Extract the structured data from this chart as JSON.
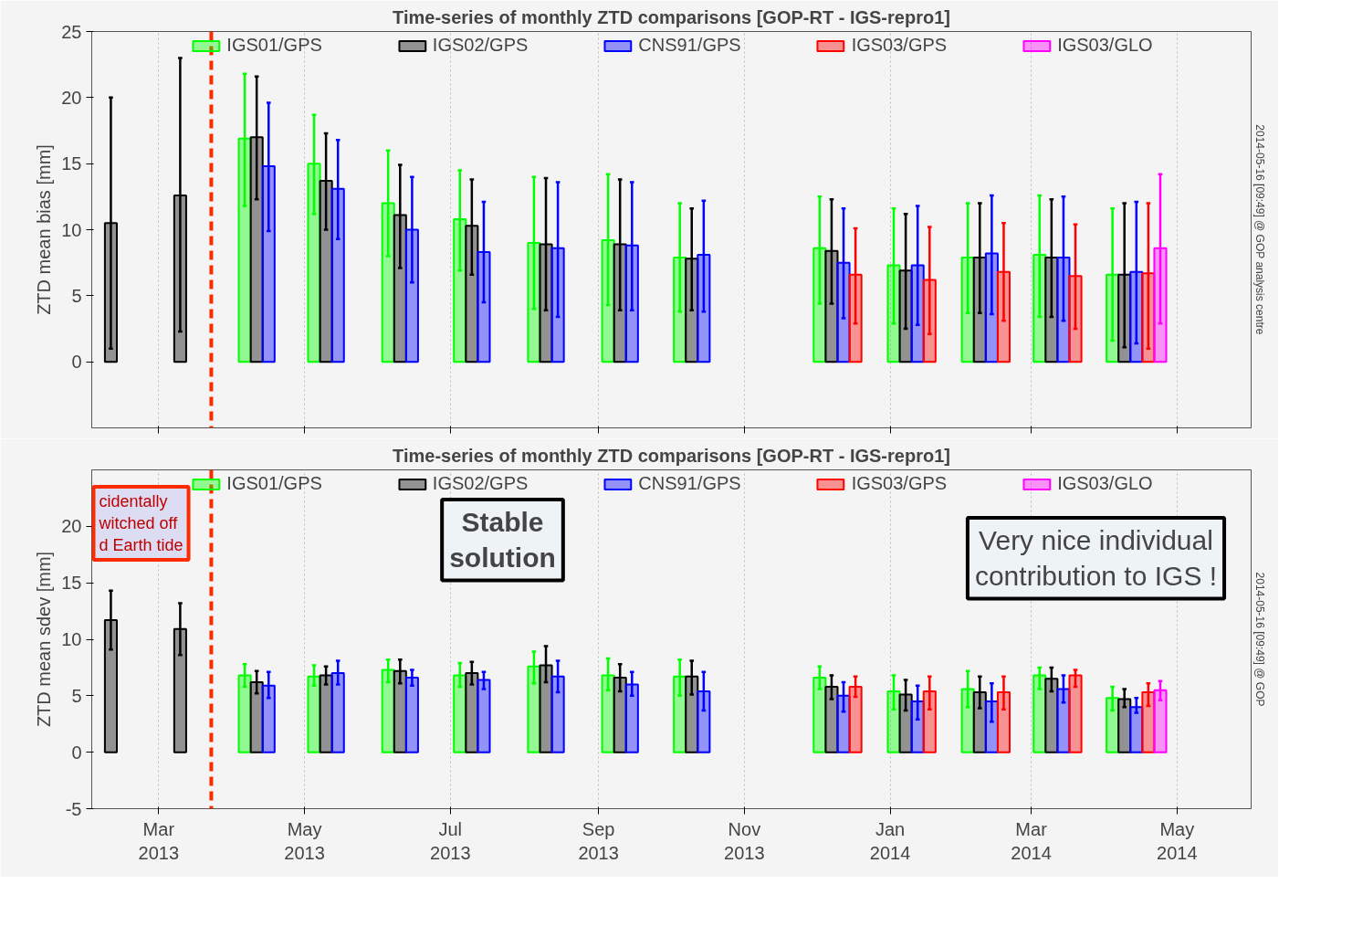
{
  "chart_data": [
    {
      "type": "bar",
      "title": "Time-series of monthly ZTD comparisons [GOP-RT - IGS-repro1]",
      "ylabel": "ZTD mean bias [mm]",
      "x": [
        "2013-02-09",
        "2013-03-10",
        "2013-04-11",
        "2013-05-10",
        "2013-06-10",
        "2013-07-10",
        "2013-08-10",
        "2013-09-10",
        "2013-10-10",
        "2013-12-10",
        "2014-01-10",
        "2014-02-10",
        "2014-03-12",
        "2014-04-14"
      ],
      "xlim": [
        "2013-02-01",
        "2014-06-01"
      ],
      "xticks": [
        {
          "value": "2013-03-01",
          "label": null
        },
        {
          "value": "2013-05-01",
          "label": null
        },
        {
          "value": "2013-07-01",
          "label": null
        },
        {
          "value": "2013-09-01",
          "label": null
        },
        {
          "value": "2013-11-01",
          "label": null
        },
        {
          "value": "2014-01-01",
          "label": null
        },
        {
          "value": "2014-03-01",
          "label": null
        },
        {
          "value": "2014-05-01",
          "label": null
        }
      ],
      "ylim": [
        -5,
        25
      ],
      "yticks": [
        0,
        5,
        10,
        15,
        20,
        25
      ],
      "tick_labels": "y",
      "grid": "x",
      "legend": "top",
      "series": [
        {
          "name": "IGS01/GPS",
          "color": "#00ff00",
          "values": [
            null,
            null,
            16.9,
            15.0,
            12.0,
            10.8,
            9.0,
            9.2,
            7.9,
            8.6,
            7.3,
            7.9,
            8.1,
            6.6
          ],
          "errors": [
            null,
            null,
            [
              11.8,
              21.8
            ],
            [
              11.2,
              18.7
            ],
            [
              8.0,
              16.0
            ],
            [
              6.9,
              14.5
            ],
            [
              4.0,
              14.0
            ],
            [
              4.3,
              14.2
            ],
            [
              3.8,
              12.0
            ],
            [
              4.4,
              12.5
            ],
            [
              2.9,
              11.6
            ],
            [
              3.7,
              12.0
            ],
            [
              3.4,
              12.6
            ],
            [
              1.6,
              11.6
            ]
          ]
        },
        {
          "name": "IGS02/GPS",
          "color": "#000000",
          "values": [
            10.5,
            12.6,
            17.0,
            13.7,
            11.1,
            10.3,
            8.9,
            8.9,
            7.8,
            8.4,
            6.9,
            7.9,
            7.9,
            6.6
          ],
          "errors": [
            [
              1.0,
              20.0
            ],
            [
              2.3,
              23.0
            ],
            [
              12.3,
              21.6
            ],
            [
              10.0,
              17.3
            ],
            [
              7.1,
              14.9
            ],
            [
              6.6,
              13.8
            ],
            [
              3.9,
              13.9
            ],
            [
              3.9,
              13.8
            ],
            [
              3.9,
              11.6
            ],
            [
              4.4,
              12.3
            ],
            [
              2.5,
              11.2
            ],
            [
              3.7,
              12.0
            ],
            [
              3.4,
              12.3
            ],
            [
              1.1,
              12.0
            ]
          ]
        },
        {
          "name": "CNS91/GPS",
          "color": "#0000ff",
          "values": [
            null,
            null,
            14.8,
            13.1,
            10.0,
            8.3,
            8.6,
            8.8,
            8.1,
            7.5,
            7.3,
            8.2,
            7.9,
            6.8
          ],
          "errors": [
            null,
            null,
            [
              9.9,
              19.6
            ],
            [
              9.3,
              16.8
            ],
            [
              6.0,
              14.0
            ],
            [
              4.5,
              12.1
            ],
            [
              3.4,
              13.6
            ],
            [
              3.9,
              13.6
            ],
            [
              3.8,
              12.2
            ],
            [
              3.3,
              11.6
            ],
            [
              2.8,
              11.8
            ],
            [
              3.6,
              12.6
            ],
            [
              3.1,
              12.5
            ],
            [
              1.4,
              12.1
            ]
          ]
        },
        {
          "name": "IGS03/GPS",
          "color": "#ff0000",
          "values": [
            null,
            null,
            null,
            null,
            null,
            null,
            null,
            null,
            null,
            6.6,
            6.2,
            6.8,
            6.5,
            6.7
          ],
          "errors": [
            null,
            null,
            null,
            null,
            null,
            null,
            null,
            null,
            null,
            [
              2.9,
              10.1
            ],
            [
              2.1,
              10.2
            ],
            [
              3.1,
              10.5
            ],
            [
              2.5,
              10.4
            ],
            [
              1.0,
              12.0
            ]
          ]
        },
        {
          "name": "IGS03/GLO",
          "color": "#ff00ff",
          "values": [
            null,
            null,
            null,
            null,
            null,
            null,
            null,
            null,
            null,
            null,
            null,
            null,
            null,
            8.6
          ],
          "errors": [
            null,
            null,
            null,
            null,
            null,
            null,
            null,
            null,
            null,
            null,
            null,
            null,
            null,
            [
              2.9,
              14.2
            ]
          ]
        }
      ],
      "ref_lines": [
        {
          "axis": "x",
          "value": "2013-03-23",
          "color": "#ff2a00",
          "line_style": "dashed"
        }
      ],
      "annotations": [
        "2014-05-16 [09:49] @ GOP analysis centre"
      ]
    },
    {
      "type": "bar",
      "title": "Time-series of monthly ZTD comparisons [GOP-RT - IGS-repro1]",
      "ylabel": "ZTD mean sdev [mm]",
      "x": [
        "2013-02-09",
        "2013-03-10",
        "2013-04-11",
        "2013-05-10",
        "2013-06-10",
        "2013-07-10",
        "2013-08-10",
        "2013-09-10",
        "2013-10-10",
        "2013-12-10",
        "2014-01-10",
        "2014-02-10",
        "2014-03-12",
        "2014-04-14"
      ],
      "xlim": [
        "2013-02-01",
        "2014-06-01"
      ],
      "xticks": [
        {
          "value": "2013-03-01",
          "label": "Mar\n2013"
        },
        {
          "value": "2013-05-01",
          "label": "May\n2013"
        },
        {
          "value": "2013-07-01",
          "label": "Jul\n2013"
        },
        {
          "value": "2013-09-01",
          "label": "Sep\n2013"
        },
        {
          "value": "2013-11-01",
          "label": "Nov\n2013"
        },
        {
          "value": "2014-01-01",
          "label": "Jan\n2014"
        },
        {
          "value": "2014-03-01",
          "label": "Mar\n2014"
        },
        {
          "value": "2014-05-01",
          "label": "May\n2014"
        }
      ],
      "ylim": [
        -5,
        25
      ],
      "yticks": [
        -5,
        0,
        5,
        10,
        15,
        20
      ],
      "grid": "x",
      "legend": "top",
      "series": [
        {
          "name": "IGS01/GPS",
          "color": "#00ff00",
          "values": [
            null,
            null,
            6.8,
            6.7,
            7.3,
            6.8,
            7.6,
            6.8,
            6.7,
            6.6,
            5.4,
            5.6,
            6.8,
            4.8
          ],
          "errors": [
            null,
            null,
            [
              5.8,
              7.8
            ],
            [
              5.9,
              7.7
            ],
            [
              6.2,
              8.2
            ],
            [
              5.8,
              7.9
            ],
            [
              6.1,
              8.9
            ],
            [
              5.5,
              8.3
            ],
            [
              5.0,
              8.2
            ],
            [
              5.6,
              7.6
            ],
            [
              3.8,
              6.8
            ],
            [
              4.0,
              7.2
            ],
            [
              5.6,
              7.5
            ],
            [
              3.7,
              5.8
            ]
          ]
        },
        {
          "name": "IGS02/GPS",
          "color": "#000000",
          "values": [
            11.7,
            10.9,
            6.2,
            6.8,
            7.2,
            7.0,
            7.7,
            6.6,
            6.7,
            5.8,
            5.1,
            5.3,
            6.5,
            4.7
          ],
          "errors": [
            [
              9.1,
              14.3
            ],
            [
              8.6,
              13.2
            ],
            [
              5.2,
              7.2
            ],
            [
              6.0,
              7.6
            ],
            [
              6.1,
              8.2
            ],
            [
              6.0,
              8.0
            ],
            [
              6.2,
              9.4
            ],
            [
              5.4,
              7.8
            ],
            [
              5.1,
              8.1
            ],
            [
              4.7,
              6.8
            ],
            [
              3.7,
              6.4
            ],
            [
              3.9,
              6.7
            ],
            [
              5.4,
              7.5
            ],
            [
              4.0,
              5.6
            ]
          ]
        },
        {
          "name": "CNS91/GPS",
          "color": "#0000ff",
          "values": [
            null,
            null,
            5.9,
            7.0,
            6.6,
            6.4,
            6.7,
            6.0,
            5.4,
            5.0,
            4.5,
            4.5,
            5.6,
            4.0
          ],
          "errors": [
            null,
            null,
            [
              4.8,
              7.1
            ],
            [
              6.0,
              8.1
            ],
            [
              5.9,
              7.3
            ],
            [
              5.6,
              7.1
            ],
            [
              5.3,
              8.1
            ],
            [
              5.0,
              7.1
            ],
            [
              3.7,
              7.1
            ],
            [
              3.6,
              6.2
            ],
            [
              2.9,
              5.9
            ],
            [
              2.7,
              6.1
            ],
            [
              4.4,
              6.8
            ],
            [
              3.5,
              4.8
            ]
          ]
        },
        {
          "name": "IGS03/GPS",
          "color": "#ff0000",
          "values": [
            null,
            null,
            null,
            null,
            null,
            null,
            null,
            null,
            null,
            5.8,
            5.4,
            5.3,
            6.8,
            5.3
          ],
          "errors": [
            null,
            null,
            null,
            null,
            null,
            null,
            null,
            null,
            null,
            [
              4.9,
              6.7
            ],
            [
              3.8,
              6.7
            ],
            [
              3.8,
              6.7
            ],
            [
              5.8,
              7.3
            ],
            [
              4.1,
              6.1
            ]
          ]
        },
        {
          "name": "IGS03/GLO",
          "color": "#ff00ff",
          "values": [
            null,
            null,
            null,
            null,
            null,
            null,
            null,
            null,
            null,
            null,
            null,
            null,
            null,
            5.5
          ],
          "errors": [
            null,
            null,
            null,
            null,
            null,
            null,
            null,
            null,
            null,
            null,
            null,
            null,
            null,
            [
              4.6,
              6.3
            ]
          ]
        }
      ],
      "ref_lines": [
        {
          "axis": "x",
          "value": "2013-03-23",
          "color": "#ff2a00",
          "line_style": "dashed"
        }
      ],
      "annotations": [
        "2014-05-16 [09:49] @ GOP",
        "cidentally\nwitched off\nd Earth tide",
        "Stable\nsolution",
        "Very nice individual\ncontribution to IGS !"
      ]
    }
  ]
}
